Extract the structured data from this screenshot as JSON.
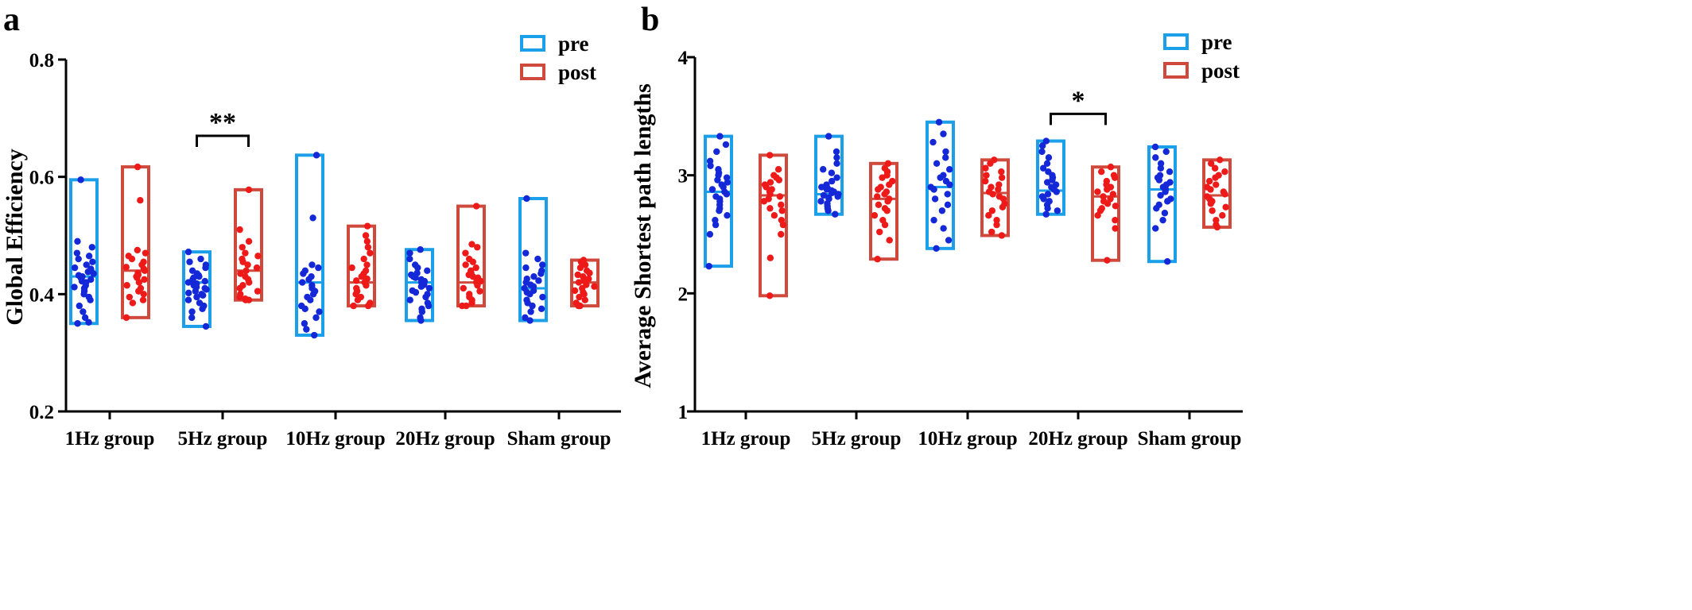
{
  "chart_data": [
    {
      "panel": "a",
      "type": "scatter",
      "ylabel": "Global Efficiency",
      "ylim": [
        0.2,
        0.8
      ],
      "yticks": [
        "0.2",
        "0.4",
        "0.6",
        "0.8"
      ],
      "categories": [
        "1Hz group",
        "5Hz group",
        "10Hz group",
        "20Hz group",
        "Sham group"
      ],
      "legend": [
        {
          "label": "pre",
          "color": "#1a9fe8"
        },
        {
          "label": "post",
          "color": "#cf4a3c"
        }
      ],
      "legend_position": "top-right",
      "box_mean": {
        "pre": [
          0.43,
          0.42,
          0.42,
          0.42,
          0.41
        ],
        "post": [
          0.44,
          0.44,
          0.42,
          0.42,
          0.42
        ]
      },
      "box_range": {
        "pre": [
          [
            0.35,
            0.595
          ],
          [
            0.345,
            0.472
          ],
          [
            0.33,
            0.637
          ],
          [
            0.355,
            0.476
          ],
          [
            0.355,
            0.563
          ]
        ],
        "post": [
          [
            0.36,
            0.617
          ],
          [
            0.39,
            0.578
          ],
          [
            0.38,
            0.516
          ],
          [
            0.38,
            0.55
          ],
          [
            0.38,
            0.458
          ]
        ]
      },
      "series": [
        {
          "name": "pre",
          "points": [
            [
              0.35,
              0.352,
              0.36,
              0.37,
              0.38,
              0.39,
              0.395,
              0.4,
              0.405,
              0.41,
              0.412,
              0.415,
              0.42,
              0.422,
              0.425,
              0.428,
              0.43,
              0.432,
              0.435,
              0.438,
              0.44,
              0.443,
              0.445,
              0.45,
              0.455,
              0.46,
              0.465,
              0.47,
              0.48,
              0.49,
              0.595
            ],
            [
              0.345,
              0.36,
              0.37,
              0.375,
              0.38,
              0.385,
              0.39,
              0.395,
              0.398,
              0.4,
              0.402,
              0.405,
              0.408,
              0.41,
              0.412,
              0.415,
              0.418,
              0.42,
              0.422,
              0.425,
              0.428,
              0.43,
              0.432,
              0.435,
              0.44,
              0.445,
              0.45,
              0.455,
              0.46,
              0.472
            ],
            [
              0.33,
              0.34,
              0.35,
              0.36,
              0.37,
              0.375,
              0.38,
              0.39,
              0.395,
              0.4,
              0.405,
              0.41,
              0.415,
              0.42,
              0.425,
              0.43,
              0.435,
              0.44,
              0.445,
              0.45,
              0.53,
              0.637
            ],
            [
              0.355,
              0.36,
              0.37,
              0.375,
              0.38,
              0.385,
              0.39,
              0.395,
              0.4,
              0.403,
              0.406,
              0.41,
              0.413,
              0.416,
              0.42,
              0.422,
              0.425,
              0.428,
              0.43,
              0.433,
              0.436,
              0.44,
              0.445,
              0.45,
              0.46,
              0.47,
              0.476
            ],
            [
              0.355,
              0.36,
              0.37,
              0.375,
              0.38,
              0.385,
              0.39,
              0.395,
              0.4,
              0.403,
              0.406,
              0.41,
              0.413,
              0.416,
              0.42,
              0.423,
              0.426,
              0.43,
              0.435,
              0.44,
              0.445,
              0.45,
              0.46,
              0.47,
              0.563
            ]
          ]
        },
        {
          "name": "post",
          "points": [
            [
              0.36,
              0.385,
              0.39,
              0.395,
              0.4,
              0.405,
              0.41,
              0.415,
              0.42,
              0.425,
              0.428,
              0.43,
              0.433,
              0.436,
              0.44,
              0.443,
              0.446,
              0.45,
              0.455,
              0.46,
              0.465,
              0.47,
              0.475,
              0.56,
              0.617
            ],
            [
              0.39,
              0.39,
              0.392,
              0.395,
              0.4,
              0.405,
              0.41,
              0.415,
              0.42,
              0.425,
              0.43,
              0.435,
              0.44,
              0.445,
              0.45,
              0.455,
              0.46,
              0.465,
              0.47,
              0.48,
              0.49,
              0.51,
              0.578
            ],
            [
              0.38,
              0.38,
              0.385,
              0.39,
              0.395,
              0.4,
              0.405,
              0.41,
              0.415,
              0.42,
              0.423,
              0.426,
              0.43,
              0.435,
              0.44,
              0.445,
              0.45,
              0.46,
              0.47,
              0.48,
              0.49,
              0.5,
              0.516
            ],
            [
              0.38,
              0.38,
              0.385,
              0.39,
              0.395,
              0.4,
              0.405,
              0.41,
              0.415,
              0.42,
              0.422,
              0.425,
              0.428,
              0.43,
              0.433,
              0.436,
              0.44,
              0.445,
              0.45,
              0.455,
              0.46,
              0.47,
              0.48,
              0.485,
              0.55
            ],
            [
              0.38,
              0.38,
              0.385,
              0.39,
              0.395,
              0.4,
              0.403,
              0.406,
              0.41,
              0.413,
              0.416,
              0.42,
              0.423,
              0.426,
              0.43,
              0.433,
              0.436,
              0.44,
              0.445,
              0.45,
              0.455,
              0.458
            ]
          ]
        }
      ],
      "significance": [
        {
          "group": 1,
          "label": "**",
          "y": 0.67
        }
      ]
    },
    {
      "panel": "b",
      "type": "scatter",
      "ylabel": "Average Shortest path lengths",
      "ylim": [
        1,
        4
      ],
      "yticks": [
        "1",
        "2",
        "3",
        "4"
      ],
      "categories": [
        "1Hz group",
        "5Hz group",
        "10Hz group",
        "20Hz group",
        "Sham group"
      ],
      "legend": [
        {
          "label": "pre",
          "color": "#1a9fe8"
        },
        {
          "label": "post",
          "color": "#cf4a3c"
        }
      ],
      "legend_position": "top-right",
      "box_mean": {
        "pre": [
          2.86,
          2.84,
          2.9,
          2.87,
          2.88
        ],
        "post": [
          2.83,
          2.8,
          2.85,
          2.82,
          2.83
        ]
      },
      "box_range": {
        "pre": [
          [
            2.23,
            3.33
          ],
          [
            2.67,
            3.33
          ],
          [
            2.38,
            3.45
          ],
          [
            2.67,
            3.29
          ],
          [
            2.27,
            3.24
          ]
        ],
        "post": [
          [
            1.98,
            3.17
          ],
          [
            2.29,
            3.1
          ],
          [
            2.49,
            3.13
          ],
          [
            2.28,
            3.07
          ],
          [
            2.56,
            3.13
          ]
        ]
      },
      "series": [
        {
          "name": "pre",
          "points": [
            [
              2.23,
              2.5,
              2.58,
              2.62,
              2.66,
              2.7,
              2.72,
              2.75,
              2.78,
              2.8,
              2.82,
              2.84,
              2.86,
              2.88,
              2.9,
              2.92,
              2.94,
              2.96,
              2.98,
              3.0,
              3.02,
              3.05,
              3.08,
              3.12,
              3.2,
              3.26,
              3.33
            ],
            [
              2.67,
              2.7,
              2.72,
              2.74,
              2.76,
              2.78,
              2.8,
              2.81,
              2.82,
              2.83,
              2.84,
              2.85,
              2.86,
              2.87,
              2.88,
              2.89,
              2.9,
              2.92,
              2.95,
              2.98,
              3.02,
              3.05,
              3.1,
              3.15,
              3.2,
              3.33
            ],
            [
              2.38,
              2.45,
              2.55,
              2.62,
              2.7,
              2.75,
              2.8,
              2.84,
              2.88,
              2.9,
              2.92,
              2.95,
              2.98,
              3.0,
              3.05,
              3.1,
              3.15,
              3.2,
              3.28,
              3.35,
              3.45
            ],
            [
              2.67,
              2.7,
              2.72,
              2.75,
              2.78,
              2.8,
              2.82,
              2.84,
              2.86,
              2.88,
              2.9,
              2.92,
              2.94,
              2.96,
              2.98,
              3.0,
              3.03,
              3.06,
              3.1,
              3.15,
              3.2,
              3.25,
              3.29
            ],
            [
              2.27,
              2.55,
              2.62,
              2.68,
              2.72,
              2.75,
              2.78,
              2.8,
              2.83,
              2.86,
              2.88,
              2.9,
              2.92,
              2.94,
              2.96,
              2.98,
              3.0,
              3.03,
              3.06,
              3.1,
              3.15,
              3.2,
              3.24
            ]
          ]
        },
        {
          "name": "post",
          "points": [
            [
              1.98,
              2.3,
              2.5,
              2.58,
              2.62,
              2.66,
              2.7,
              2.72,
              2.75,
              2.78,
              2.8,
              2.82,
              2.84,
              2.86,
              2.88,
              2.9,
              2.92,
              2.94,
              2.96,
              2.98,
              3.0,
              3.05,
              3.17
            ],
            [
              2.29,
              2.45,
              2.52,
              2.58,
              2.62,
              2.66,
              2.7,
              2.72,
              2.75,
              2.78,
              2.8,
              2.82,
              2.84,
              2.86,
              2.88,
              2.9,
              2.92,
              2.95,
              2.98,
              3.0,
              3.03,
              3.06,
              3.1
            ],
            [
              2.49,
              2.52,
              2.58,
              2.62,
              2.66,
              2.7,
              2.73,
              2.76,
              2.8,
              2.82,
              2.84,
              2.86,
              2.88,
              2.9,
              2.92,
              2.95,
              2.98,
              3.0,
              3.03,
              3.06,
              3.1,
              3.13
            ],
            [
              2.28,
              2.55,
              2.62,
              2.66,
              2.7,
              2.72,
              2.74,
              2.76,
              2.78,
              2.8,
              2.82,
              2.84,
              2.86,
              2.88,
              2.9,
              2.92,
              2.95,
              2.98,
              3.0,
              3.03,
              3.07
            ],
            [
              2.56,
              2.58,
              2.62,
              2.66,
              2.7,
              2.73,
              2.76,
              2.78,
              2.8,
              2.82,
              2.84,
              2.86,
              2.88,
              2.9,
              2.92,
              2.95,
              2.98,
              3.0,
              3.03,
              3.06,
              3.1,
              3.13
            ]
          ]
        }
      ],
      "significance": [
        {
          "group": 3,
          "label": "*",
          "y": 3.52
        }
      ]
    }
  ],
  "colors": {
    "pre_box": "#1a9fe8",
    "post_box": "#cf4a3c",
    "pre_dot": "#1428d8",
    "post_dot": "#ee1a1a",
    "axis": "#000000"
  }
}
